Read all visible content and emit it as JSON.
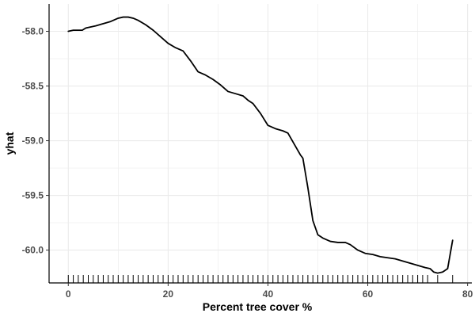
{
  "chart_data": {
    "type": "line",
    "title": "",
    "xlabel": "Percent tree cover %",
    "ylabel": "yhat",
    "xlim": [
      -3.85,
      80.85
    ],
    "ylim": [
      -60.3,
      -57.75
    ],
    "x_ticks": [
      0,
      20,
      40,
      60,
      80
    ],
    "x_tick_labels": [
      "0",
      "20",
      "40",
      "60",
      "80"
    ],
    "y_ticks": [
      -58.0,
      -58.5,
      -59.0,
      -59.5,
      -60.0
    ],
    "y_tick_labels": [
      "-58.0",
      "-58.5",
      "-59.0",
      "-59.5",
      "-60.0"
    ],
    "grid": true,
    "series": [
      {
        "x": [
          0,
          1,
          2.8,
          3.5,
          4.5,
          5.5,
          7,
          8.5,
          10,
          11,
          12,
          13,
          14,
          15.5,
          17,
          18.5,
          20,
          21.5,
          23,
          24.5,
          26,
          27.5,
          29,
          30.5,
          32,
          33.5,
          35,
          36,
          37,
          38.5,
          40,
          41.5,
          43,
          44,
          45.5,
          46.5,
          47,
          48,
          49,
          50,
          51,
          52.5,
          54,
          55.5,
          56.5,
          58,
          59.5,
          61,
          62.5,
          64,
          65.5,
          67,
          68.5,
          70,
          71.5,
          72.5,
          73.2,
          74,
          75,
          76,
          77
        ],
        "y": [
          -58.0,
          -57.99,
          -57.99,
          -57.97,
          -57.96,
          -57.95,
          -57.93,
          -57.91,
          -57.88,
          -57.87,
          -57.87,
          -57.88,
          -57.9,
          -57.94,
          -57.99,
          -58.05,
          -58.11,
          -58.15,
          -58.18,
          -58.27,
          -58.37,
          -58.4,
          -58.44,
          -58.49,
          -58.55,
          -58.57,
          -58.59,
          -58.63,
          -58.66,
          -58.75,
          -58.86,
          -58.89,
          -58.91,
          -58.93,
          -59.05,
          -59.13,
          -59.16,
          -59.43,
          -59.73,
          -59.86,
          -59.89,
          -59.92,
          -59.93,
          -59.93,
          -59.95,
          -60.0,
          -60.03,
          -60.04,
          -60.06,
          -60.07,
          -60.08,
          -60.1,
          -60.12,
          -60.14,
          -60.16,
          -60.17,
          -60.2,
          -60.21,
          -60.2,
          -60.17,
          -59.91
        ]
      }
    ],
    "rug": [
      0,
      1,
      2,
      3,
      4,
      5,
      6,
      7,
      8,
      9,
      10,
      11,
      12,
      13,
      14,
      15,
      16,
      17,
      18,
      19,
      20,
      21,
      22,
      23,
      24,
      25,
      26,
      27,
      28,
      29,
      30,
      31,
      32,
      33,
      34,
      35,
      36,
      37,
      38,
      39,
      40,
      41,
      42,
      43,
      44,
      45,
      46,
      47,
      48,
      49,
      50,
      51,
      52,
      53,
      54,
      55,
      56,
      57,
      58,
      59,
      60,
      61,
      62,
      63,
      64,
      65,
      66,
      67,
      68,
      69,
      70,
      71,
      72,
      74,
      77
    ],
    "colors": {
      "line": "#000000",
      "grid": "#ebebeb",
      "axis": "#000000",
      "tick_text": "#4d4d4d",
      "background": "#ffffff"
    }
  }
}
